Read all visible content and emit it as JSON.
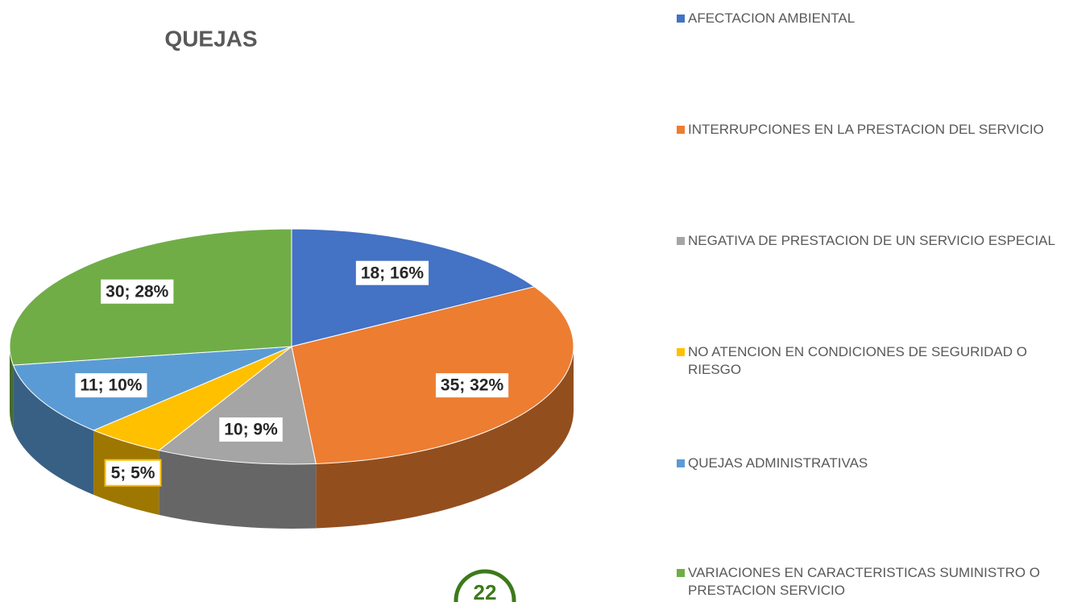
{
  "chart_data": {
    "type": "pie",
    "title": "QUEJAS",
    "categories": [
      "AFECTACION AMBIENTAL",
      "INTERRUPCIONES EN LA PRESTACION DEL SERVICIO",
      "NEGATIVA DE PRESTACION DE UN SERVICIO ESPECIAL",
      "NO ATENCION EN CONDICIONES DE SEGURIDAD O RIESGO",
      "QUEJAS ADMINISTRATIVAS",
      "VARIACIONES EN CARACTERISTICAS SUMINISTRO O PRESTACION SERVICIO"
    ],
    "values": [
      18,
      35,
      10,
      5,
      11,
      30
    ],
    "value_labels": [
      "18; 16%",
      "35; 32%",
      "10; 9%",
      "5; 5%",
      "11; 10%",
      "30; 28%"
    ],
    "colors": [
      "#4472c4",
      "#ed7d31",
      "#a5a5a5",
      "#ffc000",
      "#5b9bd5",
      "#70ad47"
    ],
    "legend": "right"
  },
  "page_number": "22"
}
